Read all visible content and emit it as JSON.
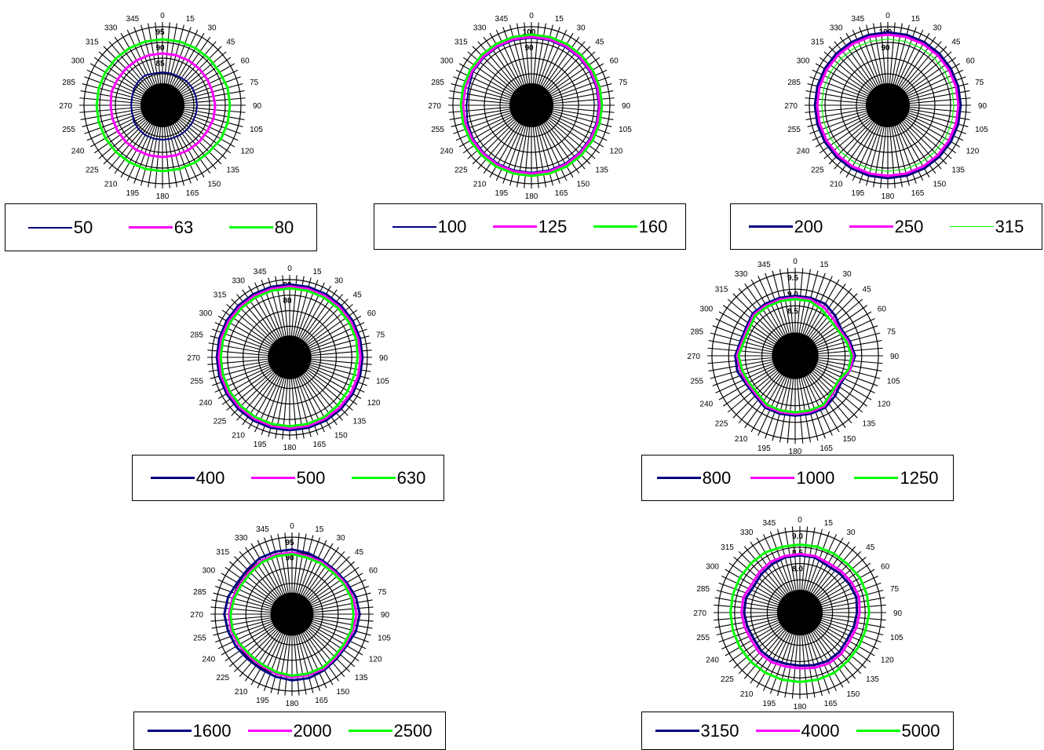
{
  "chart_data": [
    {
      "type": "radar",
      "angle_labels": [
        "0",
        "15",
        "30",
        "45",
        "60",
        "75",
        "90",
        "105",
        "120",
        "135",
        "150",
        "165",
        "180",
        "195",
        "210",
        "225",
        "240",
        "255",
        "270",
        "285",
        "300",
        "315",
        "330",
        "345"
      ],
      "radial_tick_labels": [
        "95",
        "90",
        "85"
      ],
      "rlim": [
        75,
        100
      ],
      "legend_position": "bottom",
      "series": [
        {
          "name": "50",
          "color": "#000080",
          "line_width": 2,
          "values": [
            85.5,
            85.5,
            85.5,
            85.8,
            86,
            86,
            86,
            86,
            86,
            86,
            86,
            86,
            86,
            86,
            86,
            85.8,
            85.5,
            85,
            85,
            85,
            85.5,
            85.8,
            86,
            85.5
          ]
        },
        {
          "name": "63",
          "color": "#FF00FF",
          "line_width": 3,
          "values": [
            91.5,
            91.5,
            91.5,
            91.5,
            91.5,
            91.5,
            91.8,
            91.8,
            91.5,
            91.5,
            91.5,
            91.5,
            91.5,
            91.5,
            91.5,
            91.5,
            91.5,
            91.5,
            91.5,
            91.8,
            91.5,
            91.5,
            91.5,
            91.5
          ]
        },
        {
          "name": "80",
          "color": "#00FF00",
          "line_width": 3,
          "values": [
            96,
            96,
            96,
            96,
            96,
            96.5,
            96.5,
            96.5,
            96.5,
            96,
            96,
            96,
            96,
            96,
            96,
            96,
            96,
            96,
            96,
            96,
            96,
            96,
            96,
            96
          ]
        }
      ]
    },
    {
      "type": "radar",
      "angle_labels": [
        "0",
        "15",
        "30",
        "45",
        "60",
        "75",
        "90",
        "105",
        "120",
        "135",
        "150",
        "165",
        "180",
        "195",
        "210",
        "225",
        "240",
        "255",
        "270",
        "285",
        "300",
        "315",
        "330",
        "345"
      ],
      "radial_tick_labels": [
        "100",
        "90"
      ],
      "rlim": [
        70,
        105
      ],
      "legend_position": "bottom",
      "series": [
        {
          "name": "100",
          "color": "#000080",
          "line_width": 2,
          "values": [
            100,
            100,
            100,
            100,
            100,
            100,
            100,
            100,
            100,
            100,
            100,
            100,
            100,
            100,
            100,
            100,
            100,
            99.5,
            99,
            99,
            100,
            100,
            100,
            100
          ]
        },
        {
          "name": "125",
          "color": "#FF00FF",
          "line_width": 3,
          "values": [
            100.5,
            100.5,
            100.5,
            100.5,
            100.5,
            100.5,
            100.5,
            100.5,
            100.5,
            100.5,
            100.5,
            100.5,
            100.5,
            100.5,
            100.5,
            100.5,
            100.5,
            100.5,
            100.5,
            100.5,
            100.5,
            100.5,
            100.5,
            100.5
          ]
        },
        {
          "name": "160",
          "color": "#00FF00",
          "line_width": 3,
          "values": [
            101.5,
            101.5,
            101.5,
            101.5,
            101.5,
            101.5,
            101.5,
            101.5,
            101.5,
            101.5,
            101.5,
            101.5,
            101.5,
            101.5,
            101.5,
            101.5,
            101.5,
            101.5,
            101.5,
            101.5,
            101.5,
            101.5,
            101.5,
            101.5
          ]
        }
      ]
    },
    {
      "type": "radar",
      "angle_labels": [
        "0",
        "15",
        "30",
        "45",
        "60",
        "75",
        "90",
        "105",
        "120",
        "135",
        "150",
        "165",
        "180",
        "195",
        "210",
        "225",
        "240",
        "255",
        "270",
        "285",
        "300",
        "315",
        "330",
        "345"
      ],
      "radial_tick_labels": [
        "100",
        "90"
      ],
      "rlim": [
        70,
        105
      ],
      "legend_position": "bottom",
      "series": [
        {
          "name": "200",
          "color": "#000080",
          "line_width": 3,
          "values": [
            102.5,
            102.5,
            102.5,
            102.5,
            102.5,
            102.5,
            102.5,
            102.5,
            102.5,
            102.5,
            102.5,
            102.5,
            102.5,
            102.5,
            102.5,
            102.5,
            102.5,
            102.5,
            102.5,
            102.5,
            102.5,
            102.5,
            102.5,
            102.5
          ]
        },
        {
          "name": "250",
          "color": "#FF00FF",
          "line_width": 3,
          "values": [
            101.5,
            101.5,
            101.5,
            101.5,
            101.5,
            101.5,
            101.5,
            101.5,
            101.5,
            101.5,
            101.5,
            101.5,
            101.5,
            101.5,
            101.5,
            101.5,
            101.5,
            101.5,
            101.5,
            101.5,
            101.5,
            101.5,
            101.5,
            101.5
          ]
        },
        {
          "name": "315",
          "color": "#00FF00",
          "line_width": 1.2,
          "values": [
            99.5,
            99.5,
            99.5,
            99.5,
            99.5,
            99.5,
            99.5,
            99.5,
            99.5,
            99.5,
            99.5,
            99.5,
            99.5,
            99.5,
            99.5,
            99.5,
            99.5,
            99.5,
            99.5,
            99.5,
            99.5,
            99.5,
            99.5,
            99.5
          ]
        }
      ]
    },
    {
      "type": "radar",
      "angle_labels": [
        "0",
        "15",
        "30",
        "45",
        "60",
        "75",
        "90",
        "105",
        "120",
        "135",
        "150",
        "165",
        "180",
        "195",
        "210",
        "225",
        "240",
        "255",
        "270",
        "285",
        "300",
        "315",
        "330",
        "345"
      ],
      "radial_tick_labels": [
        "90",
        "80"
      ],
      "rlim": [
        60,
        100
      ],
      "legend_position": "bottom",
      "series": [
        {
          "name": "400",
          "color": "#000080",
          "line_width": 3,
          "values": [
            97.5,
            97.5,
            97.5,
            97.5,
            97.5,
            97.5,
            97.5,
            97.5,
            97.5,
            97.5,
            97.5,
            97.5,
            97.5,
            97.5,
            97.5,
            97.5,
            97.5,
            97.5,
            97.5,
            97.5,
            97.5,
            97.5,
            97.5,
            97.5
          ]
        },
        {
          "name": "500",
          "color": "#FF00FF",
          "line_width": 3,
          "values": [
            96.5,
            96.5,
            96.5,
            96.5,
            96.5,
            96.5,
            96.5,
            96.5,
            96.5,
            96.5,
            96.5,
            96.5,
            96.5,
            96.5,
            96.5,
            96.5,
            96.5,
            96.5,
            96.5,
            96.5,
            96.5,
            96.5,
            96.5,
            96.5
          ]
        },
        {
          "name": "630",
          "color": "#00FF00",
          "line_width": 3,
          "values": [
            95.5,
            95.5,
            95.5,
            95.5,
            95.5,
            95.5,
            95,
            94.5,
            94.5,
            95,
            95.5,
            95.5,
            95.5,
            95.5,
            95.5,
            95.5,
            95.5,
            95.5,
            95.5,
            95.5,
            95.5,
            95.5,
            95.5,
            95.5
          ]
        }
      ]
    },
    {
      "type": "radar",
      "angle_labels": [
        "0",
        "15",
        "30",
        "45",
        "60",
        "75",
        "90",
        "105",
        "120",
        "135",
        "150",
        "165",
        "180",
        "195",
        "210",
        "225",
        "240",
        "255",
        "270",
        "285",
        "300",
        "315",
        "330",
        "345"
      ],
      "radial_tick_labels": [
        "9.5",
        "9.0",
        "8.5"
      ],
      "rlim": [
        7.5,
        10
      ],
      "legend_position": "bottom",
      "series": [
        {
          "name": "800",
          "color": "#000080",
          "line_width": 3,
          "values": [
            9.3,
            9.3,
            9.3,
            9.2,
            9.1,
            9.2,
            9.3,
            9.2,
            9.1,
            9.2,
            9.3,
            9.3,
            9.3,
            9.3,
            9.3,
            9.2,
            9.2,
            9.3,
            9.3,
            9.2,
            9.2,
            9.3,
            9.3,
            9.3
          ]
        },
        {
          "name": "1000",
          "color": "#FF00FF",
          "line_width": 3,
          "values": [
            9.25,
            9.25,
            9.2,
            9.1,
            9.05,
            9.15,
            9.25,
            9.2,
            9.05,
            9.1,
            9.25,
            9.25,
            9.25,
            9.25,
            9.25,
            9.15,
            9.15,
            9.2,
            9.25,
            9.15,
            9.15,
            9.25,
            9.25,
            9.25
          ]
        },
        {
          "name": "1250",
          "color": "#00FF00",
          "line_width": 3,
          "values": [
            9.2,
            9.2,
            9.1,
            9.0,
            9.0,
            9.1,
            9.2,
            9.15,
            9.0,
            9.05,
            9.2,
            9.2,
            9.2,
            9.2,
            9.2,
            9.1,
            9.1,
            9.15,
            9.2,
            9.1,
            9.1,
            9.2,
            9.2,
            9.2
          ]
        }
      ]
    },
    {
      "type": "radar",
      "angle_labels": [
        "0",
        "15",
        "30",
        "45",
        "60",
        "75",
        "90",
        "105",
        "120",
        "135",
        "150",
        "165",
        "180",
        "195",
        "210",
        "225",
        "240",
        "255",
        "270",
        "285",
        "300",
        "315",
        "330",
        "345"
      ],
      "radial_tick_labels": [
        "95",
        "90"
      ],
      "rlim": [
        75,
        100
      ],
      "legend_position": "bottom",
      "series": [
        {
          "name": "1600",
          "color": "#000080",
          "line_width": 3,
          "values": [
            96,
            95.5,
            95,
            95,
            95.5,
            96.5,
            97,
            96.5,
            95.5,
            95.5,
            96,
            96.5,
            96.5,
            96,
            95.5,
            95.5,
            96,
            96.5,
            97,
            96.5,
            95.5,
            95.5,
            96,
            96
          ]
        },
        {
          "name": "2000",
          "color": "#FF00FF",
          "line_width": 3,
          "values": [
            95,
            94.5,
            94.5,
            94.5,
            95,
            95.5,
            96,
            95.5,
            95,
            95,
            95.5,
            95.5,
            95.5,
            95,
            94.5,
            94.5,
            95,
            95.5,
            95.5,
            95,
            94.5,
            94.5,
            95,
            95
          ]
        },
        {
          "name": "2500",
          "color": "#00FF00",
          "line_width": 3,
          "values": [
            94.5,
            94,
            94,
            94,
            94.5,
            95,
            95,
            95,
            94.5,
            94.5,
            95,
            95,
            95,
            94.5,
            94,
            94,
            94.5,
            95,
            95,
            94.5,
            94,
            94,
            94.5,
            94.5
          ]
        }
      ]
    },
    {
      "type": "radar",
      "angle_labels": [
        "0",
        "15",
        "30",
        "45",
        "60",
        "75",
        "90",
        "105",
        "120",
        "135",
        "150",
        "165",
        "180",
        "195",
        "210",
        "225",
        "240",
        "255",
        "270",
        "285",
        "300",
        "315",
        "330",
        "345"
      ],
      "radial_tick_labels": [
        "9.0",
        "8.5",
        "8.0"
      ],
      "rlim": [
        6.5,
        9.5
      ],
      "legend_position": "bottom",
      "series": [
        {
          "name": "3150",
          "color": "#000080",
          "line_width": 3,
          "values": [
            8.6,
            8.6,
            8.5,
            8.55,
            8.6,
            8.65,
            8.6,
            8.55,
            8.5,
            8.55,
            8.55,
            8.5,
            8.45,
            8.45,
            8.5,
            8.5,
            8.45,
            8.5,
            8.55,
            8.55,
            8.45,
            8.5,
            8.55,
            8.6
          ]
        },
        {
          "name": "4000",
          "color": "#FF00FF",
          "line_width": 3,
          "values": [
            8.65,
            8.65,
            8.6,
            8.65,
            8.7,
            8.75,
            8.7,
            8.65,
            8.6,
            8.65,
            8.65,
            8.6,
            8.55,
            8.55,
            8.6,
            8.6,
            8.55,
            8.6,
            8.65,
            8.65,
            8.55,
            8.6,
            8.65,
            8.65
          ]
        },
        {
          "name": "5000",
          "color": "#00FF00",
          "line_width": 3,
          "values": [
            9.0,
            9.0,
            9.0,
            9.0,
            9.05,
            9.05,
            9.05,
            9.0,
            9.0,
            9.0,
            9.05,
            9.05,
            9.05,
            9.05,
            9.05,
            9.05,
            9.05,
            9.05,
            9.05,
            9.05,
            9.05,
            9.05,
            9.05,
            9.0
          ]
        }
      ]
    }
  ]
}
